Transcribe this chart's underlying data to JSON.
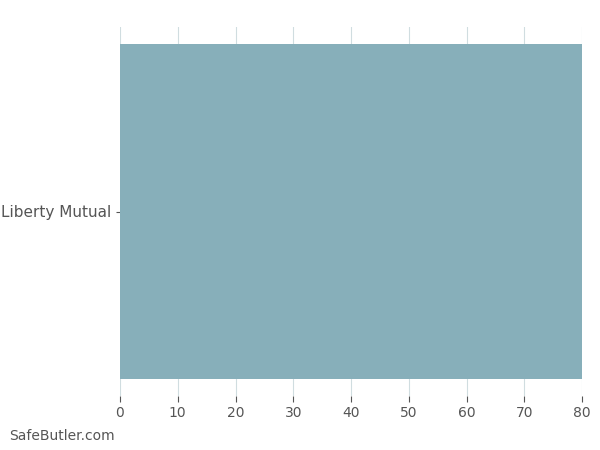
{
  "categories": [
    "Liberty Mutual"
  ],
  "values": [
    80
  ],
  "bar_color": "#87AFBA",
  "xlim": [
    0,
    80
  ],
  "xticks": [
    0,
    10,
    20,
    30,
    40,
    50,
    60,
    70,
    80
  ],
  "background_color": "#ffffff",
  "grid_color": "#d0dde0",
  "tick_color": "#555555",
  "label_fontsize": 11,
  "tick_fontsize": 10,
  "watermark": "SafeButler.com",
  "watermark_fontsize": 10,
  "watermark_color": "#555555"
}
